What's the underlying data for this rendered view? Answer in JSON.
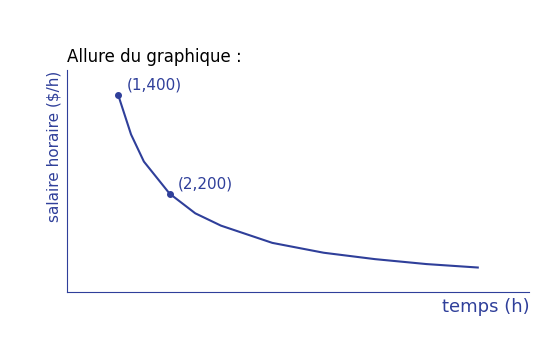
{
  "chart_data": {
    "type": "line",
    "title": "Allure du graphique :",
    "x_label": "temps (h)",
    "y_label": "salaire horaire ($/h)",
    "x": [
      1,
      1.25,
      1.5,
      2,
      2.5,
      3,
      4,
      5,
      6,
      7,
      8
    ],
    "values": [
      400,
      320,
      265,
      200,
      160,
      135,
      100,
      80,
      67,
      57,
      50
    ],
    "color": "#2f3f9a",
    "xlim": [
      0,
      9
    ],
    "ylim": [
      0,
      450
    ],
    "xticks": [],
    "yticks": [],
    "tick_labels": false,
    "grid": false,
    "line_style": "solid",
    "annotations": [
      {
        "text": "(1,400)",
        "x": 1,
        "y": 400
      },
      {
        "text": "(2,200)",
        "x": 2,
        "y": 200
      }
    ]
  }
}
